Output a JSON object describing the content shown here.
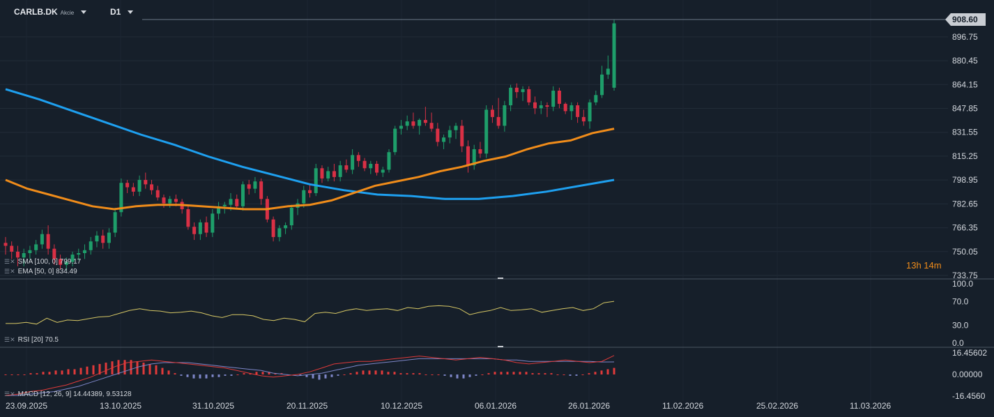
{
  "header": {
    "symbol": "CARLB.DK",
    "type": "Akcie",
    "timeframe": "D1"
  },
  "current_price": "908.60",
  "timer": "13h 14m",
  "indicators": {
    "sma": "SMA [100, 0] 799.17",
    "ema": "EMA [50, 0] 834.49",
    "rsi": "RSI [20] 70.5",
    "macd": "MACD [12, 26, 9] 14.44389, 9.53128"
  },
  "colors": {
    "up": "#1e9e6a",
    "down": "#d93045",
    "sma": "#1ea0f0",
    "ema": "#f08c1a",
    "rsi": "#d7c865",
    "macd_line": "#e03a3a",
    "signal_line": "#7d86c8",
    "hist_pos": "#e03a3a",
    "hist_neg": "#7d86c8"
  },
  "chart_data": [
    {
      "type": "candlestick",
      "title": "CARLB.DK D1",
      "y_ticks": [
        "896.75",
        "880.45",
        "864.15",
        "847.85",
        "831.55",
        "815.25",
        "798.95",
        "782.65",
        "766.35",
        "750.05",
        "733.75"
      ],
      "ylim": [
        733.75,
        908.6
      ],
      "x_ticks": [
        "23.09.2025",
        "13.10.2025",
        "31.10.2025",
        "20.11.2025",
        "10.12.2025",
        "06.01.2026",
        "26.01.2026",
        "11.02.2026",
        "25.02.2026",
        "11.03.2026"
      ],
      "candles": [
        [
          756,
          760,
          748,
          754
        ],
        [
          754,
          757,
          745,
          750
        ],
        [
          750,
          754,
          740,
          746
        ],
        [
          746,
          752,
          740,
          749
        ],
        [
          749,
          754,
          745,
          751
        ],
        [
          751,
          758,
          748,
          755
        ],
        [
          755,
          765,
          752,
          762
        ],
        [
          762,
          768,
          748,
          752
        ],
        [
          752,
          755,
          741,
          745
        ],
        [
          745,
          748,
          738,
          741
        ],
        [
          741,
          746,
          737,
          743
        ],
        [
          743,
          750,
          740,
          748
        ],
        [
          748,
          752,
          744,
          749
        ],
        [
          749,
          755,
          745,
          751
        ],
        [
          751,
          760,
          748,
          757
        ],
        [
          757,
          764,
          753,
          761
        ],
        [
          761,
          765,
          752,
          756
        ],
        [
          756,
          766,
          752,
          763
        ],
        [
          763,
          780,
          760,
          777
        ],
        [
          777,
          800,
          774,
          797
        ],
        [
          797,
          799,
          790,
          794
        ],
        [
          794,
          797,
          788,
          791
        ],
        [
          791,
          802,
          788,
          799
        ],
        [
          799,
          804,
          793,
          796
        ],
        [
          796,
          799,
          789,
          792
        ],
        [
          792,
          795,
          785,
          787
        ],
        [
          787,
          789,
          780,
          783
        ],
        [
          783,
          788,
          780,
          786
        ],
        [
          786,
          789,
          781,
          784
        ],
        [
          784,
          786,
          776,
          779
        ],
        [
          779,
          781,
          765,
          767
        ],
        [
          767,
          770,
          758,
          762
        ],
        [
          762,
          772,
          758,
          770
        ],
        [
          770,
          774,
          760,
          763
        ],
        [
          763,
          779,
          760,
          776
        ],
        [
          776,
          784,
          772,
          781
        ],
        [
          781,
          784,
          776,
          782
        ],
        [
          782,
          790,
          778,
          786
        ],
        [
          786,
          789,
          780,
          781
        ],
        [
          781,
          798,
          778,
          796
        ],
        [
          796,
          799,
          789,
          793
        ],
        [
          793,
          801,
          790,
          798
        ],
        [
          798,
          800,
          782,
          786
        ],
        [
          786,
          788,
          770,
          772
        ],
        [
          772,
          774,
          757,
          760
        ],
        [
          760,
          768,
          757,
          766
        ],
        [
          766,
          770,
          762,
          768
        ],
        [
          768,
          782,
          765,
          780
        ],
        [
          780,
          786,
          775,
          783
        ],
        [
          783,
          795,
          780,
          792
        ],
        [
          792,
          796,
          787,
          790
        ],
        [
          790,
          810,
          788,
          807
        ],
        [
          807,
          809,
          797,
          800
        ],
        [
          800,
          808,
          798,
          805
        ],
        [
          805,
          810,
          798,
          801
        ],
        [
          801,
          812,
          798,
          809
        ],
        [
          809,
          813,
          804,
          806
        ],
        [
          806,
          820,
          803,
          816
        ],
        [
          816,
          818,
          808,
          812
        ],
        [
          812,
          814,
          805,
          807
        ],
        [
          807,
          812,
          803,
          810
        ],
        [
          810,
          812,
          802,
          804
        ],
        [
          804,
          808,
          801,
          806
        ],
        [
          806,
          820,
          804,
          818
        ],
        [
          818,
          836,
          816,
          834
        ],
        [
          834,
          840,
          830,
          836
        ],
        [
          836,
          843,
          833,
          839
        ],
        [
          839,
          845,
          834,
          836
        ],
        [
          836,
          841,
          830,
          840
        ],
        [
          840,
          849,
          836,
          838
        ],
        [
          838,
          845,
          832,
          834
        ],
        [
          834,
          838,
          822,
          825
        ],
        [
          825,
          830,
          820,
          828
        ],
        [
          828,
          836,
          824,
          833
        ],
        [
          833,
          838,
          827,
          836
        ],
        [
          836,
          840,
          818,
          822
        ],
        [
          822,
          826,
          804,
          809
        ],
        [
          809,
          823,
          806,
          820
        ],
        [
          820,
          825,
          814,
          817
        ],
        [
          817,
          850,
          814,
          847
        ],
        [
          847,
          850,
          838,
          842
        ],
        [
          842,
          855,
          834,
          836
        ],
        [
          836,
          853,
          832,
          850
        ],
        [
          850,
          864,
          846,
          862
        ],
        [
          862,
          865,
          855,
          859
        ],
        [
          859,
          863,
          853,
          861
        ],
        [
          861,
          863,
          850,
          852
        ],
        [
          852,
          856,
          844,
          848
        ],
        [
          848,
          853,
          844,
          850
        ],
        [
          850,
          852,
          842,
          849
        ],
        [
          849,
          863,
          846,
          860
        ],
        [
          860,
          862,
          848,
          851
        ],
        [
          851,
          852,
          844,
          846
        ],
        [
          846,
          852,
          840,
          850
        ],
        [
          850,
          852,
          838,
          842
        ],
        [
          842,
          847,
          836,
          839
        ],
        [
          839,
          854,
          834,
          852
        ],
        [
          852,
          860,
          850,
          857
        ],
        [
          857,
          877,
          855,
          871
        ],
        [
          871,
          884,
          868,
          875
        ],
        [
          862,
          908.6,
          860,
          906
        ]
      ],
      "series": [
        {
          "name": "SMA [100, 0]",
          "values": [
            861,
            854,
            846,
            838,
            830,
            823,
            815,
            808,
            802,
            796,
            792,
            789,
            788,
            786,
            786,
            788,
            791,
            795,
            799
          ]
        },
        {
          "name": "EMA [50, 0]",
          "values": [
            799,
            793,
            789,
            785,
            781,
            779,
            781,
            782,
            782,
            781,
            780,
            779,
            779,
            781,
            782,
            785,
            790,
            795,
            798,
            801,
            805,
            808,
            812,
            815,
            820,
            824,
            826,
            831,
            834
          ]
        }
      ]
    },
    {
      "type": "line",
      "title": "RSI [20]",
      "y_ticks": [
        "100.0",
        "70.0",
        "30.0",
        "0.0"
      ],
      "ylim": [
        0,
        100
      ],
      "series": [
        {
          "name": "RSI [20]",
          "values": [
            33,
            33,
            35,
            32,
            42,
            35,
            39,
            38,
            41,
            44,
            45,
            50,
            55,
            58,
            55,
            54,
            51,
            52,
            54,
            51,
            46,
            43,
            48,
            48,
            46,
            40,
            38,
            42,
            40,
            36,
            50,
            52,
            50,
            55,
            58,
            55,
            57,
            58,
            55,
            60,
            58,
            62,
            63,
            62,
            58,
            48,
            52,
            55,
            60,
            55,
            56,
            58,
            52,
            55,
            58,
            60,
            55,
            58,
            68,
            70.5
          ]
        }
      ]
    },
    {
      "type": "bar",
      "title": "MACD [12, 26, 9]",
      "y_ticks": [
        "16.45602",
        "0.00000",
        "-16.4560"
      ],
      "ylim": [
        -16.456,
        16.456
      ],
      "histogram": [
        0,
        0,
        0,
        0,
        1,
        1,
        2,
        2,
        3,
        3,
        4,
        4,
        5,
        6,
        7,
        8,
        9,
        10,
        11,
        11,
        11,
        10,
        9,
        8,
        7,
        5,
        3,
        1,
        -1,
        -2,
        -3,
        -3,
        -3,
        -2,
        -2,
        -1,
        -1,
        0,
        1,
        1,
        2,
        2,
        2,
        1,
        1,
        0,
        0,
        -1,
        -2,
        -3,
        -4,
        -3,
        -2,
        -1,
        0,
        1,
        2,
        3,
        3,
        3,
        3,
        2,
        2,
        1,
        1,
        1,
        1,
        0,
        0,
        0,
        -1,
        -2,
        -3,
        -3,
        -2,
        -1,
        0,
        1,
        2,
        2,
        2,
        2,
        2,
        2,
        1,
        1,
        1,
        1,
        0,
        0,
        -1,
        -1,
        0,
        1,
        2,
        3,
        4,
        5
      ],
      "series": [
        {
          "name": "MACD",
          "values": [
            -16,
            -15,
            -13,
            -12,
            -10,
            -8,
            -5,
            -2,
            2,
            6,
            9,
            10,
            11,
            10,
            9,
            8,
            7,
            6,
            5,
            3,
            1,
            -1,
            -2,
            -1,
            0,
            2,
            5,
            8,
            9,
            10,
            10,
            11,
            12,
            13,
            14,
            13,
            12,
            11,
            12,
            13,
            12,
            11,
            9,
            8,
            9,
            10,
            11,
            10,
            9,
            10,
            14.44
          ]
        },
        {
          "name": "Signal",
          "values": [
            -16,
            -16,
            -15,
            -14,
            -13,
            -11,
            -9,
            -6,
            -3,
            0,
            3,
            6,
            8,
            9,
            9,
            9,
            8,
            7,
            6,
            5,
            4,
            3,
            1,
            0,
            -1,
            0,
            1,
            3,
            5,
            7,
            8,
            9,
            10,
            11,
            12,
            12,
            12,
            12,
            12,
            12,
            12,
            11,
            11,
            10,
            10,
            10,
            10,
            10,
            10,
            9.5,
            9.53
          ]
        }
      ]
    }
  ]
}
